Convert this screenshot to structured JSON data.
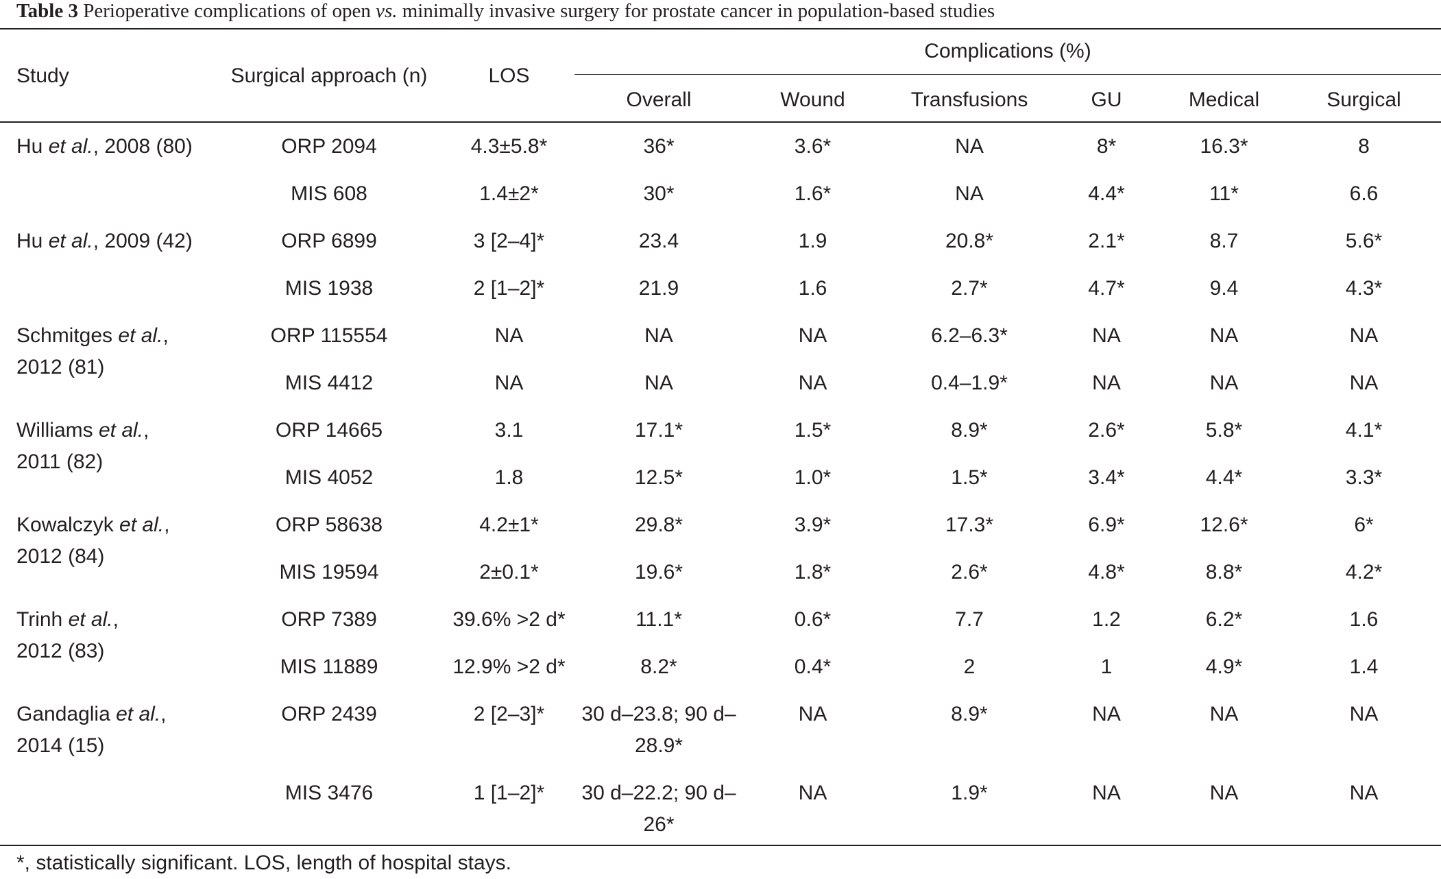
{
  "caption": {
    "label": "Table 3",
    "text_before": " Perioperative complications of open ",
    "vs": "vs.",
    "text_after": " minimally invasive surgery for prostate cancer in population-based studies"
  },
  "header": {
    "study": "Study",
    "approach": "Surgical approach (n)",
    "los": "LOS",
    "complications": "Complications (%)",
    "overall": "Overall",
    "wound": "Wound",
    "transfusions": "Transfusions",
    "gu": "GU",
    "medical": "Medical",
    "surgical": "Surgical"
  },
  "rows": [
    {
      "study_pre": "Hu ",
      "study_it": "et al.",
      "study_post": ", 2008 (80)",
      "study_line2": "",
      "approach": "ORP 2094",
      "los": "4.3±5.8*",
      "overall": "36*",
      "wound": "3.6*",
      "transfusions": "NA",
      "gu": "8*",
      "medical": "16.3*",
      "surgical": "8"
    },
    {
      "study_pre": "",
      "study_it": "",
      "study_post": "",
      "study_line2": "",
      "approach": "MIS 608",
      "los": "1.4±2*",
      "overall": "30*",
      "wound": "1.6*",
      "transfusions": "NA",
      "gu": "4.4*",
      "medical": "11*",
      "surgical": "6.6"
    },
    {
      "study_pre": "Hu ",
      "study_it": "et al.",
      "study_post": ", 2009 (42)",
      "study_line2": "",
      "approach": "ORP 6899",
      "los": "3 [2–4]*",
      "overall": "23.4",
      "wound": "1.9",
      "transfusions": "20.8*",
      "gu": "2.1*",
      "medical": "8.7",
      "surgical": "5.6*"
    },
    {
      "study_pre": "",
      "study_it": "",
      "study_post": "",
      "study_line2": "",
      "approach": "MIS 1938",
      "los": "2 [1–2]*",
      "overall": "21.9",
      "wound": "1.6",
      "transfusions": "2.7*",
      "gu": "4.7*",
      "medical": "9.4",
      "surgical": "4.3*"
    },
    {
      "study_pre": "Schmitges ",
      "study_it": "et al.",
      "study_post": ",",
      "study_line2": "2012 (81)",
      "approach": "ORP 115554",
      "los": "NA",
      "overall": "NA",
      "wound": "NA",
      "transfusions": "6.2–6.3*",
      "gu": "NA",
      "medical": "NA",
      "surgical": "NA"
    },
    {
      "study_pre": "",
      "study_it": "",
      "study_post": "",
      "study_line2": "",
      "approach": "MIS 4412",
      "los": "NA",
      "overall": "NA",
      "wound": "NA",
      "transfusions": "0.4–1.9*",
      "gu": "NA",
      "medical": "NA",
      "surgical": "NA"
    },
    {
      "study_pre": "Williams ",
      "study_it": "et al.",
      "study_post": ",",
      "study_line2": "2011 (82)",
      "approach": "ORP 14665",
      "los": "3.1",
      "overall": "17.1*",
      "wound": "1.5*",
      "transfusions": "8.9*",
      "gu": "2.6*",
      "medical": "5.8*",
      "surgical": "4.1*"
    },
    {
      "study_pre": "",
      "study_it": "",
      "study_post": "",
      "study_line2": "",
      "approach": "MIS 4052",
      "los": "1.8",
      "overall": "12.5*",
      "wound": "1.0*",
      "transfusions": "1.5*",
      "gu": "3.4*",
      "medical": "4.4*",
      "surgical": "3.3*"
    },
    {
      "study_pre": "Kowalczyk ",
      "study_it": "et al.",
      "study_post": ",",
      "study_line2": "2012 (84)",
      "approach": "ORP 58638",
      "los": "4.2±1*",
      "overall": "29.8*",
      "wound": "3.9*",
      "transfusions": "17.3*",
      "gu": "6.9*",
      "medical": "12.6*",
      "surgical": "6*"
    },
    {
      "study_pre": "",
      "study_it": "",
      "study_post": "",
      "study_line2": "",
      "approach": "MIS 19594",
      "los": "2±0.1*",
      "overall": "19.6*",
      "wound": "1.8*",
      "transfusions": "2.6*",
      "gu": "4.8*",
      "medical": "8.8*",
      "surgical": "4.2*"
    },
    {
      "study_pre": "Trinh ",
      "study_it": "et al.",
      "study_post": ",",
      "study_line2": "2012 (83)",
      "approach": "ORP 7389",
      "los": "39.6% >2 d*",
      "overall": "11.1*",
      "wound": "0.6*",
      "transfusions": "7.7",
      "gu": "1.2",
      "medical": "6.2*",
      "surgical": "1.6"
    },
    {
      "study_pre": "",
      "study_it": "",
      "study_post": "",
      "study_line2": "",
      "approach": "MIS 11889",
      "los": "12.9% >2 d*",
      "overall": "8.2*",
      "wound": "0.4*",
      "transfusions": "2",
      "gu": "1",
      "medical": "4.9*",
      "surgical": "1.4"
    },
    {
      "study_pre": "Gandaglia ",
      "study_it": "et al.",
      "study_post": ",",
      "study_line2": "2014 (15)",
      "approach": "ORP 2439",
      "los": "2 [2–3]*",
      "overall": "30 d–23.8; 90 d–28.9*",
      "wound": "NA",
      "transfusions": "8.9*",
      "gu": "NA",
      "medical": "NA",
      "surgical": "NA"
    },
    {
      "study_pre": "",
      "study_it": "",
      "study_post": "",
      "study_line2": "",
      "approach": "MIS 3476",
      "los": "1 [1–2]*",
      "overall": "30 d–22.2; 90 d–26*",
      "wound": "NA",
      "transfusions": "1.9*",
      "gu": "NA",
      "medical": "NA",
      "surgical": "NA"
    }
  ],
  "footnote": "*, statistically significant. LOS, length of hospital stays."
}
